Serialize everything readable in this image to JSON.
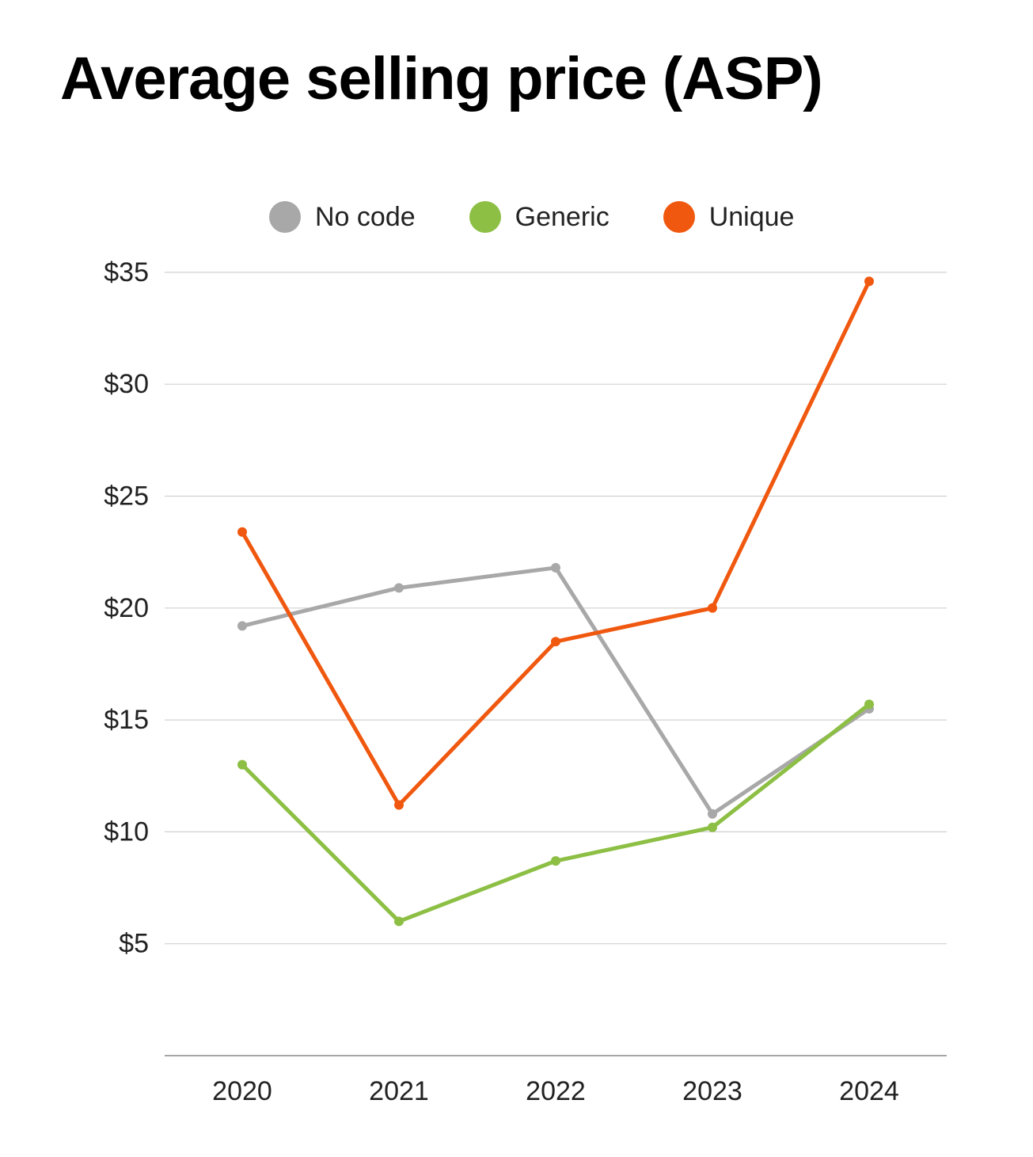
{
  "chart_data": {
    "type": "line",
    "title": "Average selling price (ASP)",
    "xlabel": "",
    "ylabel": "",
    "categories": [
      "2020",
      "2021",
      "2022",
      "2023",
      "2024"
    ],
    "ylim": [
      0,
      35
    ],
    "yticks": [
      5,
      10,
      15,
      20,
      25,
      30,
      35
    ],
    "ytick_labels": [
      "$5",
      "$10",
      "$15",
      "$20",
      "$25",
      "$30",
      "$35"
    ],
    "grid": true,
    "legend_position": "top-center",
    "series": [
      {
        "name": "No code",
        "color": "#a8a8a8",
        "values": [
          19.2,
          20.9,
          21.8,
          10.8,
          15.5
        ]
      },
      {
        "name": "Generic",
        "color": "#8cbf44",
        "values": [
          13.0,
          6.0,
          8.7,
          10.2,
          15.7
        ]
      },
      {
        "name": "Unique",
        "color": "#f0580f",
        "values": [
          23.4,
          11.2,
          18.5,
          20.0,
          34.6
        ]
      }
    ]
  }
}
